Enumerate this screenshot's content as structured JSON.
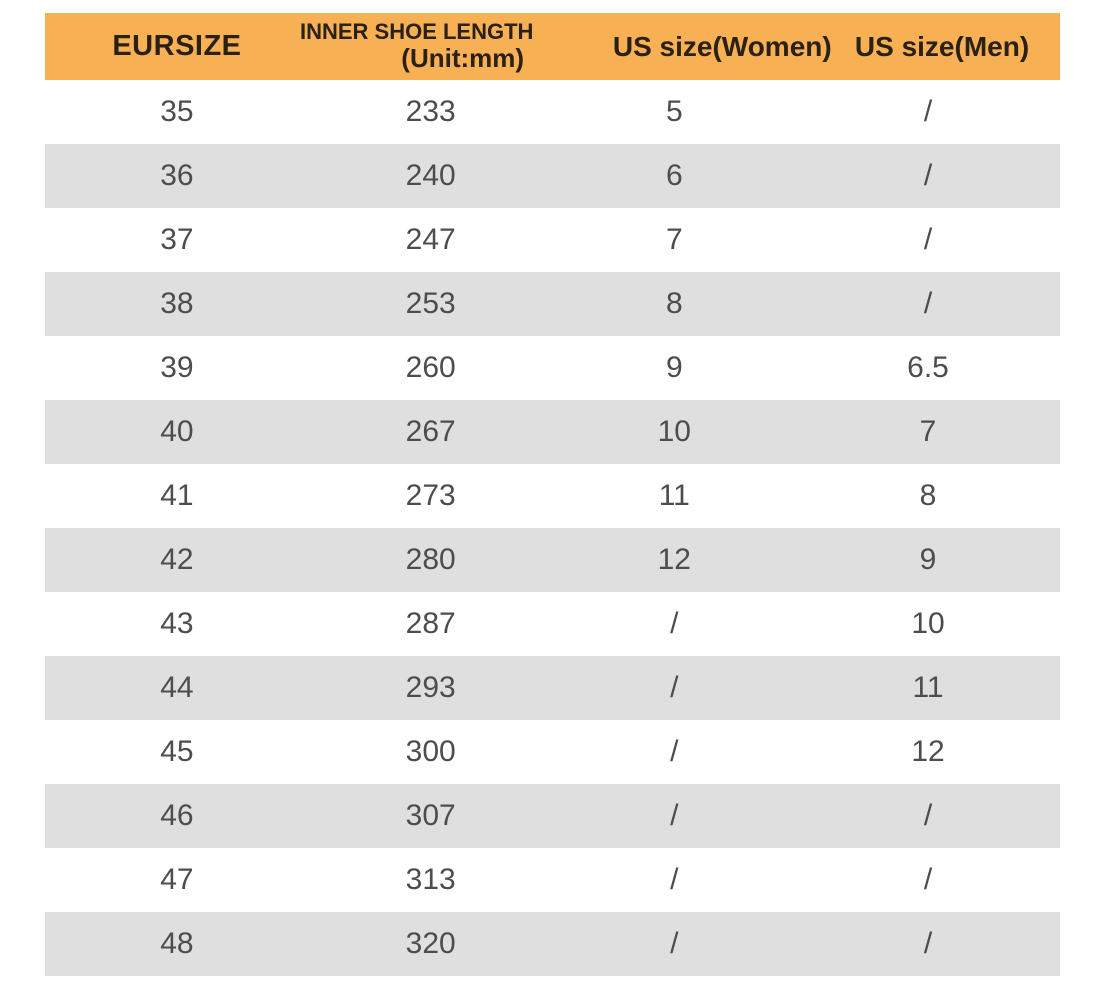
{
  "chart_data": {
    "type": "table",
    "columns": [
      "EURSIZE",
      "INNER SHOE LENGTH (Unit:mm)",
      "US size(Women)",
      "US size(Men)"
    ],
    "rows": [
      [
        "35",
        "233",
        "5",
        "/"
      ],
      [
        "36",
        "240",
        "6",
        "/"
      ],
      [
        "37",
        "247",
        "7",
        "/"
      ],
      [
        "38",
        "253",
        "8",
        "/"
      ],
      [
        "39",
        "260",
        "9",
        "6.5"
      ],
      [
        "40",
        "267",
        "10",
        "7"
      ],
      [
        "41",
        "273",
        "11",
        "8"
      ],
      [
        "42",
        "280",
        "12",
        "9"
      ],
      [
        "43",
        "287",
        "/",
        "10"
      ],
      [
        "44",
        "293",
        "/",
        "11"
      ],
      [
        "45",
        "300",
        "/",
        "12"
      ],
      [
        "46",
        "307",
        "/",
        "/"
      ],
      [
        "47",
        "313",
        "/",
        "/"
      ],
      [
        "48",
        "320",
        "/",
        "/"
      ]
    ]
  },
  "table": {
    "header": {
      "col1": "EURSIZE",
      "col2_line1": "INNER SHOE LENGTH",
      "col2_line2": "(Unit:mm)",
      "col3": "US size(Women)",
      "col4": "US size(Men)"
    }
  },
  "colors": {
    "header_bg": "#F7B054",
    "row_bg": "#FFFFFF",
    "alt_row_bg": "#DFDFDF",
    "header_text": "#2A2014",
    "body_text": "#4D4D4D"
  }
}
